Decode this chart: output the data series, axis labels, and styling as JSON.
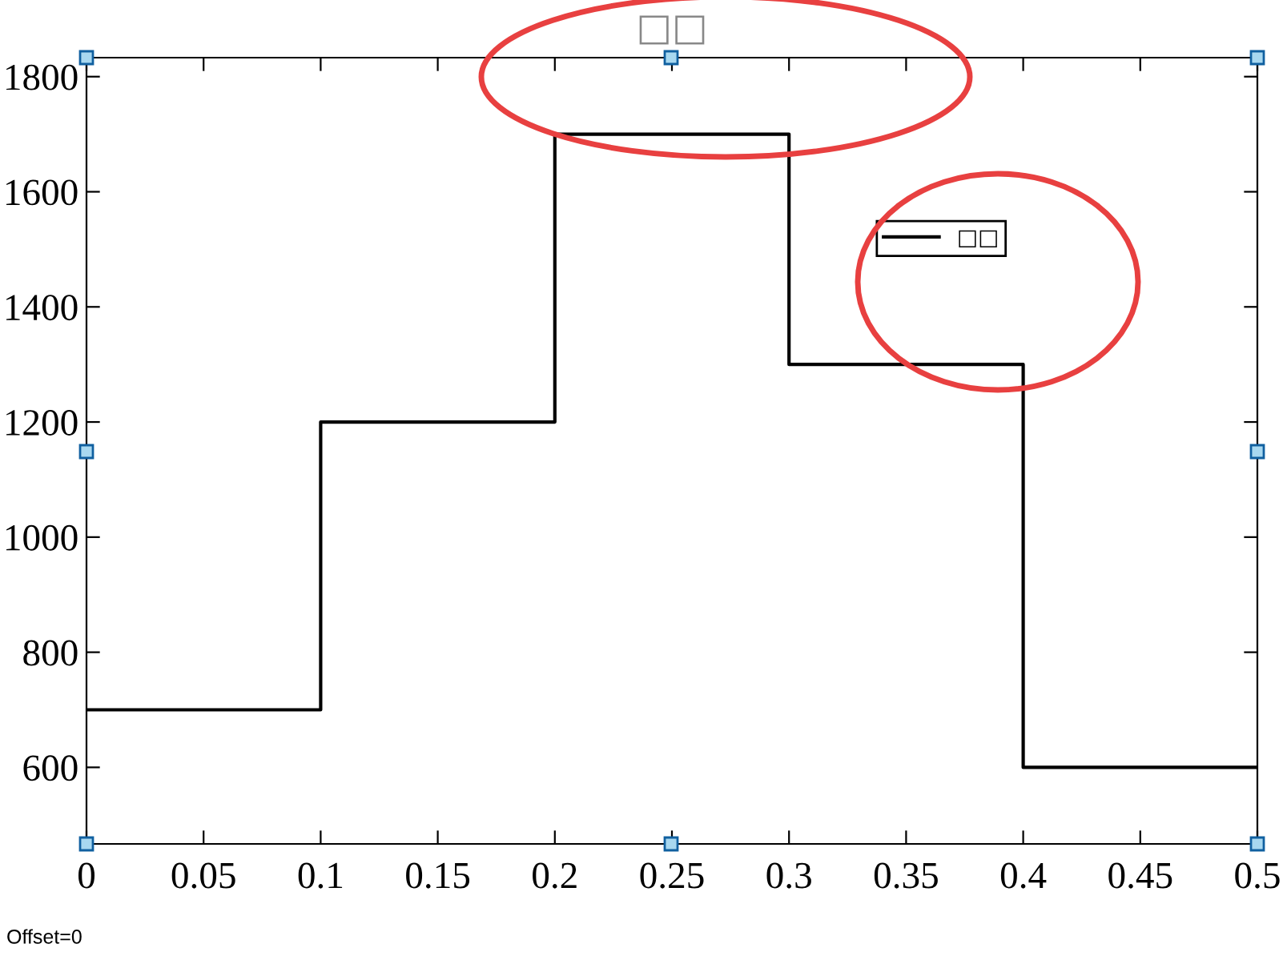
{
  "chart_data": {
    "type": "step",
    "title": "□□",
    "x": [
      0,
      0.1,
      0.2,
      0.3,
      0.4,
      0.5
    ],
    "series": [
      {
        "name": "□□",
        "color": "#000000",
        "values": [
          700,
          1200,
          1700,
          1300,
          600,
          600
        ]
      }
    ],
    "xlim": [
      0,
      0.5
    ],
    "xticks": [
      0,
      0.05,
      0.1,
      0.15,
      0.2,
      0.25,
      0.3,
      0.35,
      0.4,
      0.45,
      0.5
    ],
    "ylim": [
      467,
      1833
    ],
    "yticks": [
      600,
      800,
      1000,
      1200,
      1400,
      1600,
      1800
    ],
    "legend": "top right",
    "grid": false,
    "annotations": [
      "Offset=0"
    ]
  }
}
